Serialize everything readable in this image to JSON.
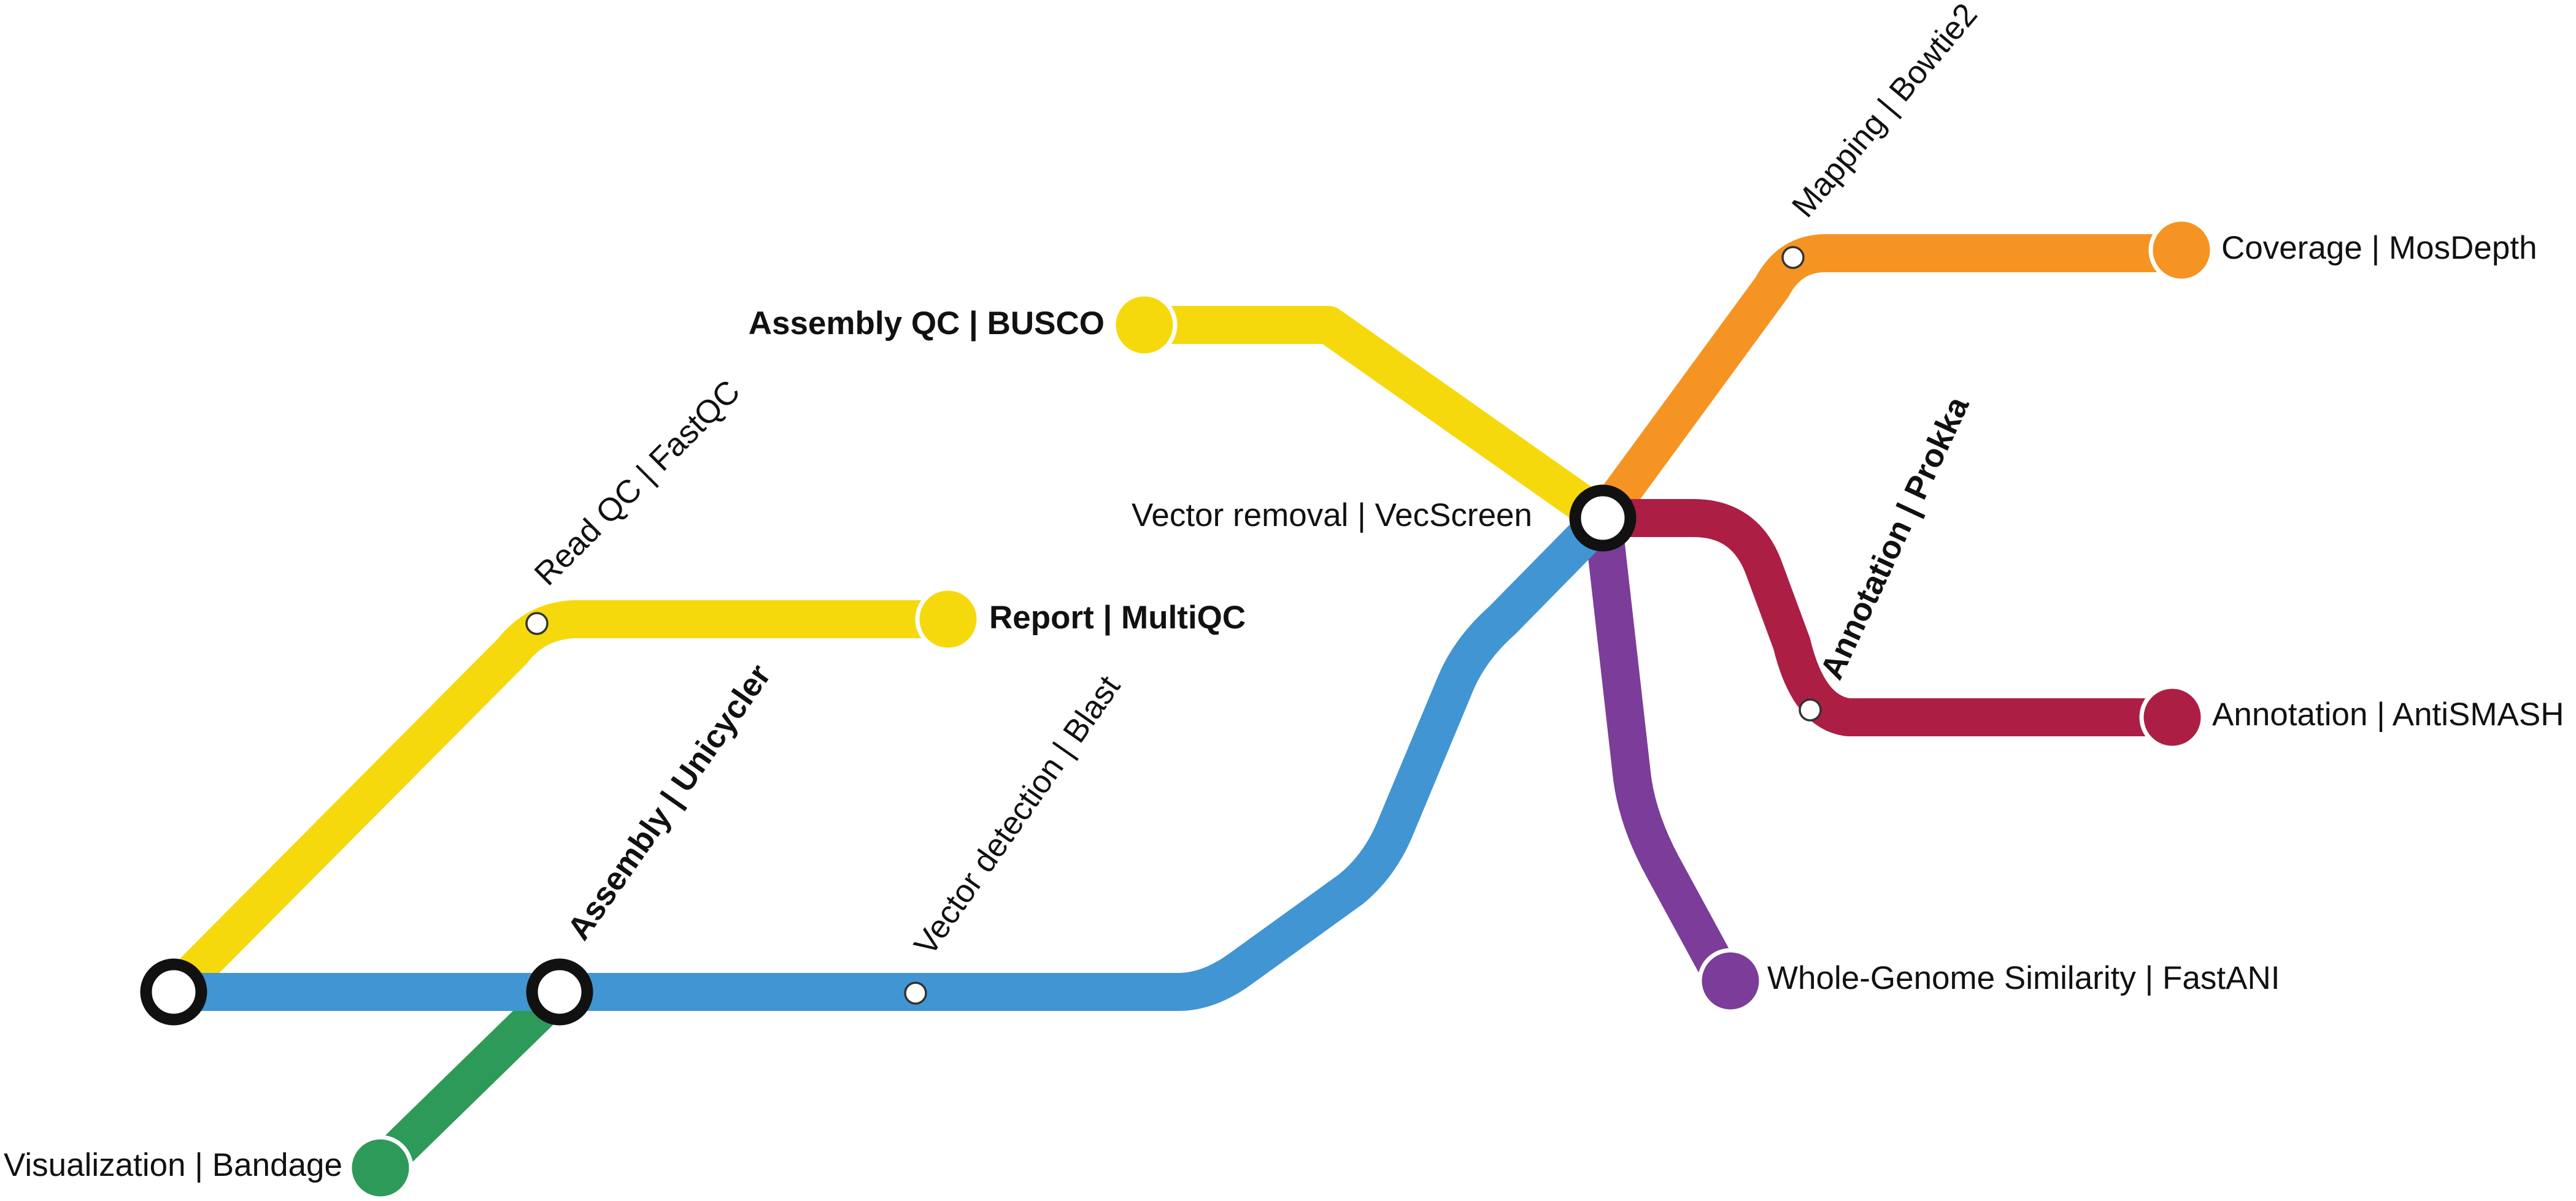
{
  "colors": {
    "yellow": "#f6d90d",
    "blue": "#4195d2",
    "green": "#2e9a59",
    "orange": "#f59422",
    "crimson": "#ad1e44",
    "purple": "#7b3d99"
  },
  "lines": [
    {
      "id": "yellow-readqc",
      "color": "yellow"
    },
    {
      "id": "yellow-busco",
      "color": "yellow"
    },
    {
      "id": "blue-main",
      "color": "blue"
    },
    {
      "id": "green-bandage",
      "color": "green"
    },
    {
      "id": "orange-mapping",
      "color": "orange"
    },
    {
      "id": "crimson-annotation",
      "color": "crimson"
    },
    {
      "id": "purple-fastani",
      "color": "purple"
    }
  ],
  "labels": {
    "read_qc": "Read QC | FastQC",
    "report": "Report | MultiQC",
    "assembly_qc": "Assembly QC | BUSCO",
    "assembly": "Assembly | Unicycler",
    "vector_detection": "Vector detection | Blast",
    "vector_removal": "Vector removal | VecScreen",
    "visualization": "Visualization | Bandage",
    "mapping": "Mapping | Bowtie2",
    "coverage": "Coverage | MosDepth",
    "annotation_prokka": "Annotation | Prokka",
    "annotation_antismash": "Annotation | AntiSMASH",
    "whole_genome": "Whole-Genome Similarity | FastANI"
  }
}
